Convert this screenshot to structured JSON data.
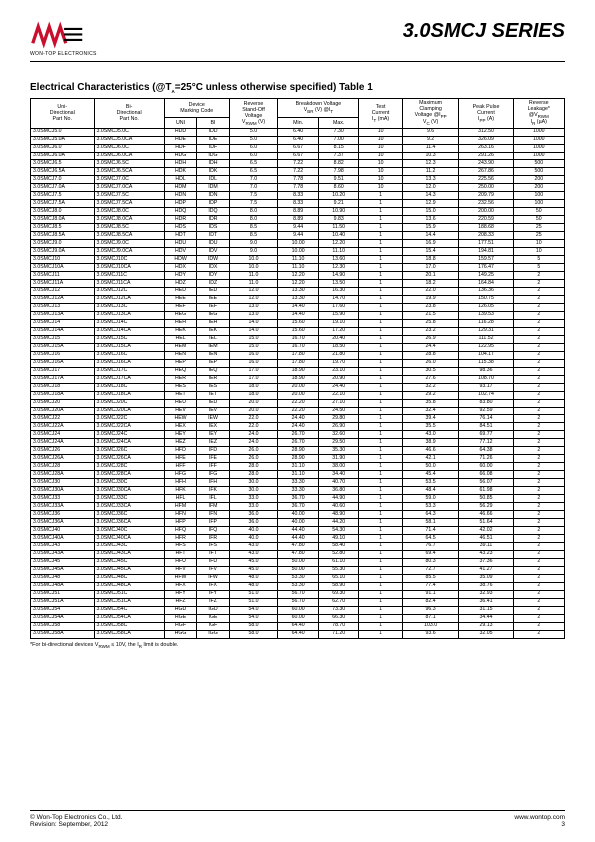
{
  "header": {
    "logo_sub": "WON-TOP ELECTRONICS",
    "series": "3.0SMCJ SERIES"
  },
  "table_title": "Electrical Characteristics (@T_A=25°C unless otherwise specified) Table 1",
  "columns": {
    "uni": "Uni-\nDirectional\nPart No.",
    "bi": "Bi-\nDirectional\nPart No.",
    "mc": "Device\nMarking Code",
    "mc_uni": "UNI",
    "mc_bi": "BI",
    "vrwm": "Reverse\nStand-Off\nVoltage",
    "vrwm_sub": "V_RWM (V)",
    "bv": "Breakdown Voltage\nV_BR (V) @I_T",
    "bv_min": "Min.",
    "bv_max": "Max.",
    "it": "Test\nCurrent",
    "it_sub": "I_T (mA)",
    "vc": "Maximum\nClamping\nVoltage @I_PP",
    "vc_sub": "V_C (V)",
    "ipp": "Peak Pulse\nCurrent",
    "ipp_sub": "I_PP (A)",
    "ir": "Reverse\nLeakage*",
    "ir_sub": "@V_RWM\nI_R (µA)"
  },
  "groups": [
    [
      [
        "3.0SMCJ5.0",
        "3.0SMCJ5.0C",
        "HDD",
        "IDD",
        "5.0",
        "6.40",
        "7.30",
        "10",
        "9.6",
        "312.50",
        "1000"
      ],
      [
        "3.0SMCJ5.0A",
        "3.0SMCJ5.0CA",
        "HDE",
        "IDE",
        "5.0",
        "6.40",
        "7.00",
        "10",
        "9.2",
        "326.09",
        "1000"
      ],
      [
        "3.0SMCJ6.0",
        "3.0SMCJ6.0C",
        "HDF",
        "IDF",
        "6.0",
        "6.67",
        "8.15",
        "10",
        "11.4",
        "263.16",
        "1000"
      ],
      [
        "3.0SMCJ6.0A",
        "3.0SMCJ6.0CA",
        "HDG",
        "IDG",
        "6.0",
        "6.67",
        "7.37",
        "10",
        "10.3",
        "291.26",
        "1000"
      ]
    ],
    [
      [
        "3.0SMCJ6.5",
        "3.0SMCJ6.5C",
        "HDH",
        "IDH",
        "6.5",
        "7.22",
        "8.82",
        "10",
        "12.3",
        "243.90",
        "500"
      ],
      [
        "3.0SMCJ6.5A",
        "3.0SMCJ6.5CA",
        "HDK",
        "IDK",
        "6.5",
        "7.22",
        "7.98",
        "10",
        "11.2",
        "267.86",
        "500"
      ],
      [
        "3.0SMCJ7.0",
        "3.0SMCJ7.0C",
        "HDL",
        "IDL",
        "7.0",
        "7.78",
        "9.51",
        "10",
        "13.3",
        "225.56",
        "200"
      ],
      [
        "3.0SMCJ7.0A",
        "3.0SMCJ7.0CA",
        "HDM",
        "IDM",
        "7.0",
        "7.78",
        "8.60",
        "10",
        "12.0",
        "250.00",
        "200"
      ]
    ],
    [
      [
        "3.0SMCJ7.5",
        "3.0SMCJ7.5C",
        "HDN",
        "IDN",
        "7.5",
        "8.33",
        "10.20",
        "1",
        "14.3",
        "209.79",
        "100"
      ],
      [
        "3.0SMCJ7.5A",
        "3.0SMCJ7.5CA",
        "HDP",
        "IDP",
        "7.5",
        "8.33",
        "9.21",
        "1",
        "12.9",
        "232.56",
        "100"
      ],
      [
        "3.0SMCJ8.0",
        "3.0SMCJ8.0C",
        "HDQ",
        "IDQ",
        "8.0",
        "8.89",
        "10.90",
        "1",
        "15.0",
        "200.00",
        "50"
      ],
      [
        "3.0SMCJ8.0A",
        "3.0SMCJ8.0CA",
        "HDR",
        "IDR",
        "8.0",
        "8.89",
        "9.83",
        "1",
        "13.6",
        "220.59",
        "50"
      ]
    ],
    [
      [
        "3.0SMCJ8.5",
        "3.0SMCJ8.5C",
        "HDS",
        "IDS",
        "8.5",
        "9.44",
        "11.50",
        "1",
        "15.9",
        "188.68",
        "25"
      ],
      [
        "3.0SMCJ8.5A",
        "3.0SMCJ8.5CA",
        "HDT",
        "IDT",
        "8.5",
        "9.44",
        "10.40",
        "1",
        "14.4",
        "208.33",
        "25"
      ],
      [
        "3.0SMCJ9.0",
        "3.0SMCJ9.0C",
        "HDU",
        "IDU",
        "9.0",
        "10.00",
        "12.20",
        "1",
        "16.9",
        "177.51",
        "10"
      ],
      [
        "3.0SMCJ9.0A",
        "3.0SMCJ9.0CA",
        "HDV",
        "IDV",
        "9.0",
        "10.00",
        "11.10",
        "1",
        "15.4",
        "194.81",
        "10"
      ]
    ],
    [
      [
        "3.0SMCJ10",
        "3.0SMCJ10C",
        "HDW",
        "IDW",
        "10.0",
        "11.10",
        "13.60",
        "1",
        "18.8",
        "159.57",
        "5"
      ],
      [
        "3.0SMCJ10A",
        "3.0SMCJ10CA",
        "HDX",
        "IDX",
        "10.0",
        "11.10",
        "12.30",
        "1",
        "17.0",
        "176.47",
        "5"
      ],
      [
        "3.0SMCJ11",
        "3.0SMCJ11C",
        "HDY",
        "IDY",
        "11.0",
        "12.20",
        "14.90",
        "1",
        "20.1",
        "149.25",
        "2"
      ],
      [
        "3.0SMCJ11A",
        "3.0SMCJ11CA",
        "HDZ",
        "IDZ",
        "11.0",
        "12.20",
        "13.50",
        "1",
        "18.2",
        "164.84",
        "2"
      ]
    ],
    [
      [
        "3.0SMCJ12",
        "3.0SMCJ12C",
        "HED",
        "IED",
        "12.0",
        "13.30",
        "16.30",
        "1",
        "22.0",
        "136.36",
        "2"
      ],
      [
        "3.0SMCJ12A",
        "3.0SMCJ12CA",
        "HEE",
        "IEE",
        "12.0",
        "13.30",
        "14.70",
        "1",
        "19.9",
        "150.75",
        "2"
      ],
      [
        "3.0SMCJ13",
        "3.0SMCJ13C",
        "HEF",
        "IEF",
        "13.0",
        "14.40",
        "17.60",
        "1",
        "23.8",
        "126.05",
        "2"
      ],
      [
        "3.0SMCJ13A",
        "3.0SMCJ13CA",
        "HEG",
        "IEG",
        "13.0",
        "14.40",
        "15.90",
        "1",
        "21.5",
        "139.53",
        "2"
      ]
    ],
    [
      [
        "3.0SMCJ14",
        "3.0SMCJ14C",
        "HEH",
        "IEH",
        "14.0",
        "15.60",
        "19.10",
        "1",
        "25.8",
        "116.28",
        "2"
      ],
      [
        "3.0SMCJ14A",
        "3.0SMCJ14CA",
        "HEK",
        "IEK",
        "14.0",
        "15.60",
        "17.20",
        "1",
        "23.2",
        "129.31",
        "2"
      ],
      [
        "3.0SMCJ15",
        "3.0SMCJ15C",
        "HEL",
        "IEL",
        "15.0",
        "16.70",
        "20.40",
        "1",
        "26.9",
        "111.52",
        "2"
      ],
      [
        "3.0SMCJ15A",
        "3.0SMCJ15CA",
        "HEM",
        "IEM",
        "15.0",
        "16.70",
        "18.50",
        "1",
        "24.4",
        "122.95",
        "2"
      ]
    ],
    [
      [
        "3.0SMCJ16",
        "3.0SMCJ16C",
        "HEN",
        "IEN",
        "16.0",
        "17.80",
        "21.80",
        "1",
        "28.8",
        "104.17",
        "2"
      ],
      [
        "3.0SMCJ16A",
        "3.0SMCJ16CA",
        "HEP",
        "IEP",
        "16.0",
        "17.80",
        "19.70",
        "1",
        "26.0",
        "115.38",
        "2"
      ],
      [
        "3.0SMCJ17",
        "3.0SMCJ17C",
        "HEQ",
        "IEQ",
        "17.0",
        "18.90",
        "23.10",
        "1",
        "30.5",
        "98.36",
        "2"
      ],
      [
        "3.0SMCJ17A",
        "3.0SMCJ17CA",
        "HER",
        "IER",
        "17.0",
        "18.90",
        "20.90",
        "1",
        "27.6",
        "108.70",
        "2"
      ]
    ],
    [
      [
        "3.0SMCJ18",
        "3.0SMCJ18C",
        "HES",
        "IES",
        "18.0",
        "20.00",
        "24.40",
        "1",
        "32.2",
        "93.17",
        "2"
      ],
      [
        "3.0SMCJ18A",
        "3.0SMCJ18CA",
        "HET",
        "IET",
        "18.0",
        "20.00",
        "22.10",
        "1",
        "29.2",
        "102.74",
        "2"
      ],
      [
        "3.0SMCJ20",
        "3.0SMCJ20C",
        "HEU",
        "IEU",
        "20.0",
        "22.20",
        "27.10",
        "1",
        "35.8",
        "83.80",
        "2"
      ],
      [
        "3.0SMCJ20A",
        "3.0SMCJ20CA",
        "HEV",
        "IEV",
        "20.0",
        "22.20",
        "24.50",
        "1",
        "32.4",
        "92.59",
        "2"
      ]
    ],
    [
      [
        "3.0SMCJ22",
        "3.0SMCJ22C",
        "HEW",
        "IEW",
        "22.0",
        "24.40",
        "29.80",
        "1",
        "39.4",
        "76.14",
        "2"
      ],
      [
        "3.0SMCJ22A",
        "3.0SMCJ22CA",
        "HEX",
        "IEX",
        "22.0",
        "24.40",
        "26.90",
        "1",
        "35.5",
        "84.51",
        "2"
      ],
      [
        "3.0SMCJ24",
        "3.0SMCJ24C",
        "HEY",
        "IEY",
        "24.0",
        "26.70",
        "32.60",
        "1",
        "43.0",
        "69.77",
        "2"
      ],
      [
        "3.0SMCJ24A",
        "3.0SMCJ24CA",
        "HEZ",
        "IEZ",
        "24.0",
        "26.70",
        "29.50",
        "1",
        "38.9",
        "77.12",
        "2"
      ]
    ],
    [
      [
        "3.0SMCJ26",
        "3.0SMCJ26C",
        "HFD",
        "IFD",
        "26.0",
        "28.90",
        "35.30",
        "1",
        "46.6",
        "64.38",
        "2"
      ],
      [
        "3.0SMCJ26A",
        "3.0SMCJ26CA",
        "HFE",
        "IFE",
        "26.0",
        "28.90",
        "31.90",
        "1",
        "42.1",
        "71.26",
        "2"
      ],
      [
        "3.0SMCJ28",
        "3.0SMCJ28C",
        "HFF",
        "IFF",
        "28.0",
        "31.10",
        "38.00",
        "1",
        "50.0",
        "60.00",
        "2"
      ],
      [
        "3.0SMCJ28A",
        "3.0SMCJ28CA",
        "HFG",
        "IFG",
        "28.0",
        "31.10",
        "34.40",
        "1",
        "45.4",
        "66.08",
        "2"
      ]
    ],
    [
      [
        "3.0SMCJ30",
        "3.0SMCJ30C",
        "HFH",
        "IFH",
        "30.0",
        "33.30",
        "40.70",
        "1",
        "53.5",
        "56.07",
        "2"
      ],
      [
        "3.0SMCJ30A",
        "3.0SMCJ30CA",
        "HFK",
        "IFK",
        "30.0",
        "33.30",
        "36.80",
        "1",
        "48.4",
        "61.98",
        "2"
      ],
      [
        "3.0SMCJ33",
        "3.0SMCJ33C",
        "HFL",
        "IFL",
        "33.0",
        "36.70",
        "44.90",
        "1",
        "59.0",
        "50.85",
        "2"
      ],
      [
        "3.0SMCJ33A",
        "3.0SMCJ33CA",
        "HFM",
        "IFM",
        "33.0",
        "36.70",
        "40.60",
        "1",
        "53.3",
        "56.29",
        "2"
      ]
    ],
    [
      [
        "3.0SMCJ36",
        "3.0SMCJ36C",
        "HFN",
        "IFN",
        "36.0",
        "40.00",
        "48.90",
        "1",
        "64.3",
        "46.66",
        "2"
      ],
      [
        "3.0SMCJ36A",
        "3.0SMCJ36CA",
        "HFP",
        "IFP",
        "36.0",
        "40.00",
        "44.20",
        "1",
        "58.1",
        "51.64",
        "2"
      ],
      [
        "3.0SMCJ40",
        "3.0SMCJ40C",
        "HFQ",
        "IFQ",
        "40.0",
        "44.40",
        "54.30",
        "1",
        "71.4",
        "42.02",
        "2"
      ],
      [
        "3.0SMCJ40A",
        "3.0SMCJ40CA",
        "HFR",
        "IFR",
        "40.0",
        "44.40",
        "49.10",
        "1",
        "64.5",
        "46.51",
        "2"
      ]
    ],
    [
      [
        "3.0SMCJ43",
        "3.0SMCJ43C",
        "HFS",
        "IFS",
        "43.0",
        "47.80",
        "58.40",
        "1",
        "76.7",
        "39.11",
        "2"
      ],
      [
        "3.0SMCJ43A",
        "3.0SMCJ43CA",
        "HFT",
        "IFT",
        "43.0",
        "47.80",
        "52.80",
        "1",
        "69.4",
        "43.23",
        "2"
      ],
      [
        "3.0SMCJ45",
        "3.0SMCJ45C",
        "HFU",
        "IFU",
        "45.0",
        "50.00",
        "61.10",
        "1",
        "80.3",
        "37.36",
        "2"
      ],
      [
        "3.0SMCJ45A",
        "3.0SMCJ45CA",
        "HFV",
        "IFV",
        "45.0",
        "50.00",
        "55.30",
        "1",
        "72.7",
        "41.27",
        "2"
      ]
    ],
    [
      [
        "3.0SMCJ48",
        "3.0SMCJ48C",
        "HFW",
        "IFW",
        "48.0",
        "53.30",
        "65.10",
        "1",
        "85.5",
        "35.09",
        "2"
      ],
      [
        "3.0SMCJ48A",
        "3.0SMCJ48CA",
        "HFX",
        "IFX",
        "48.0",
        "53.30",
        "58.90",
        "1",
        "77.4",
        "38.76",
        "2"
      ],
      [
        "3.0SMCJ51",
        "3.0SMCJ51C",
        "HFY",
        "IFY",
        "51.0",
        "56.70",
        "69.30",
        "1",
        "91.1",
        "32.93",
        "2"
      ],
      [
        "3.0SMCJ51A",
        "3.0SMCJ51CA",
        "HFZ",
        "IFZ",
        "51.0",
        "56.70",
        "62.70",
        "1",
        "82.4",
        "36.41",
        "2"
      ]
    ],
    [
      [
        "3.0SMCJ54",
        "3.0SMCJ54C",
        "HGD",
        "IGD",
        "54.0",
        "60.00",
        "73.30",
        "1",
        "96.3",
        "31.15",
        "2"
      ],
      [
        "3.0SMCJ54A",
        "3.0SMCJ54CA",
        "HGE",
        "IGE",
        "54.0",
        "60.00",
        "66.30",
        "1",
        "87.1",
        "34.44",
        "2"
      ],
      [
        "3.0SMCJ58",
        "3.0SMCJ58C",
        "HGF",
        "IGF",
        "58.0",
        "64.40",
        "78.70",
        "1",
        "103.0",
        "29.13",
        "2"
      ],
      [
        "3.0SMCJ58A",
        "3.0SMCJ58CA",
        "HGG",
        "IGG",
        "58.0",
        "64.40",
        "71.20",
        "1",
        "93.6",
        "32.05",
        "2"
      ]
    ]
  ],
  "footnote": "*For bi-directional devices V_RWM ≤ 10V, the I_R limit is double.",
  "footer": {
    "left1": "© Won-Top Electronics Co., Ltd.",
    "left2": "Revision: September, 2012",
    "url": "www.wontop.com",
    "page": "3"
  },
  "colors": {
    "logo_red": "#c8102e",
    "text": "#000000",
    "border": "#000000",
    "bg": "#ffffff"
  }
}
